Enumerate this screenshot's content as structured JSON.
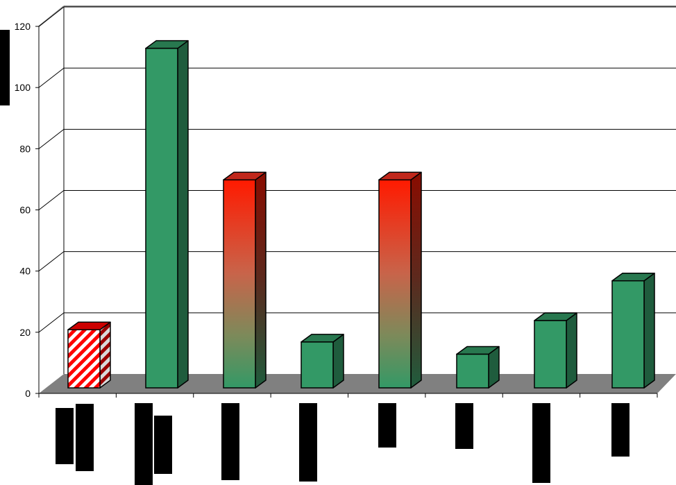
{
  "colors": {
    "green_front": "#339966",
    "green_side": "#1f5c3d",
    "green_top": "#28784f",
    "red": "#ff0000",
    "red_side": "#990000",
    "floor": "#808080",
    "redacted": "#000000"
  },
  "chart_data": {
    "type": "bar",
    "style": "3d-column",
    "title": "",
    "xlabel": "",
    "ylabel": "",
    "ylim": [
      0,
      120
    ],
    "yticks": [
      0,
      20,
      40,
      60,
      80,
      100,
      120
    ],
    "ytick_labels": [
      "0",
      "20",
      "40",
      "60",
      "80",
      "100",
      "120"
    ],
    "grid": true,
    "legend": "none",
    "category_labels_redacted": true,
    "values": [
      19,
      111,
      68,
      15,
      68,
      11,
      22,
      35
    ],
    "fills": [
      "red-hatched",
      "green",
      "red-green-gradient",
      "green",
      "red-green-gradient",
      "green",
      "green",
      "green"
    ]
  }
}
